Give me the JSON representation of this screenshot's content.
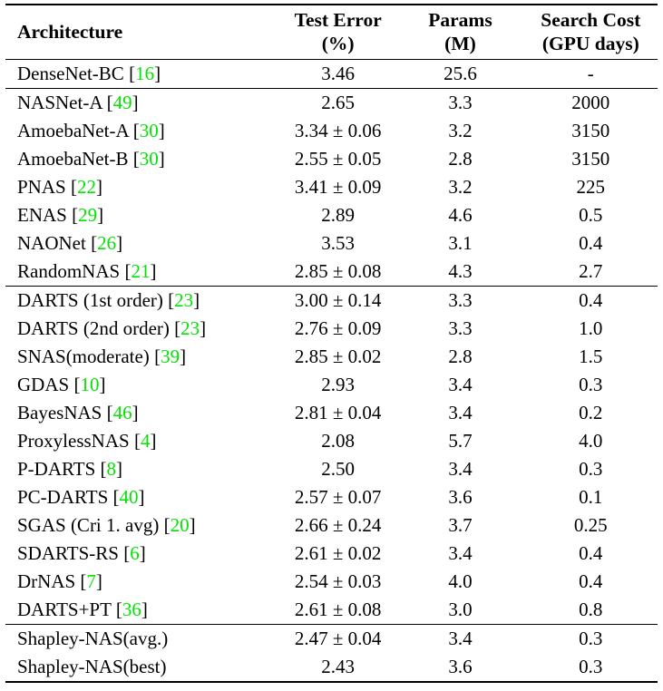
{
  "colors": {
    "citation_green": "#00e400",
    "text": "#000000",
    "background": "#ffffff",
    "rule": "#000000"
  },
  "table": {
    "headers": [
      {
        "line1": "Architecture",
        "line2": ""
      },
      {
        "line1": "Test Error",
        "line2": "(%)"
      },
      {
        "line1": "Params",
        "line2": "(M)"
      },
      {
        "line1": "Search Cost",
        "line2": "(GPU days)"
      }
    ],
    "citation_brackets": {
      "open": "[",
      "close": "]"
    },
    "sections": [
      {
        "rows": [
          {
            "name": "DenseNet-BC",
            "cite": "16",
            "test_error": "3.46",
            "params": "25.6",
            "search_cost": "-"
          }
        ]
      },
      {
        "rows": [
          {
            "name": "NASNet-A",
            "cite": "49",
            "test_error": "2.65",
            "params": "3.3",
            "search_cost": "2000"
          },
          {
            "name": "AmoebaNet-A",
            "cite": "30",
            "test_error": "3.34 ± 0.06",
            "params": "3.2",
            "search_cost": "3150"
          },
          {
            "name": "AmoebaNet-B",
            "cite": "30",
            "test_error": "2.55 ± 0.05",
            "params": "2.8",
            "search_cost": "3150"
          },
          {
            "name": "PNAS",
            "cite": "22",
            "test_error": "3.41 ± 0.09",
            "params": "3.2",
            "search_cost": "225"
          },
          {
            "name": "ENAS",
            "cite": "29",
            "test_error": "2.89",
            "params": "4.6",
            "search_cost": "0.5"
          },
          {
            "name": "NAONet",
            "cite": "26",
            "test_error": "3.53",
            "params": "3.1",
            "search_cost": "0.4"
          },
          {
            "name": "RandomNAS",
            "cite": "21",
            "test_error": "2.85 ± 0.08",
            "params": "4.3",
            "search_cost": "2.7"
          }
        ]
      },
      {
        "rows": [
          {
            "name": "DARTS (1st order)",
            "cite": "23",
            "test_error": "3.00 ± 0.14",
            "params": "3.3",
            "search_cost": "0.4"
          },
          {
            "name": "DARTS (2nd order)",
            "cite": "23",
            "test_error": "2.76 ± 0.09",
            "params": "3.3",
            "search_cost": "1.0"
          },
          {
            "name": "SNAS(moderate)",
            "cite": "39",
            "test_error": "2.85 ± 0.02",
            "params": "2.8",
            "search_cost": "1.5"
          },
          {
            "name": "GDAS",
            "cite": "10",
            "test_error": "2.93",
            "params": "3.4",
            "search_cost": "0.3"
          },
          {
            "name": "BayesNAS",
            "cite": "46",
            "test_error": "2.81 ± 0.04",
            "params": "3.4",
            "search_cost": "0.2"
          },
          {
            "name": "ProxylessNAS",
            "cite": "4",
            "test_error": "2.08",
            "params": "5.7",
            "search_cost": "4.0"
          },
          {
            "name": "P-DARTS",
            "cite": "8",
            "test_error": "2.50",
            "params": "3.4",
            "search_cost": "0.3"
          },
          {
            "name": "PC-DARTS",
            "cite": "40",
            "test_error": "2.57 ± 0.07",
            "params": "3.6",
            "search_cost": "0.1"
          },
          {
            "name": "SGAS (Cri 1. avg)",
            "cite": "20",
            "test_error": "2.66 ± 0.24",
            "params": "3.7",
            "search_cost": "0.25"
          },
          {
            "name": "SDARTS-RS",
            "cite": "6",
            "test_error": "2.61 ± 0.02",
            "params": "3.4",
            "search_cost": "0.4"
          },
          {
            "name": "DrNAS",
            "cite": "7",
            "test_error": "2.54 ± 0.03",
            "params": "4.0",
            "search_cost": "0.4"
          },
          {
            "name": "DARTS+PT",
            "cite": "36",
            "test_error": "2.61 ± 0.08",
            "params": "3.0",
            "search_cost": "0.8"
          }
        ]
      },
      {
        "rows": [
          {
            "name": "Shapley-NAS(avg.)",
            "cite": "",
            "test_error": "2.47 ± 0.04",
            "params": "3.4",
            "search_cost": "0.3"
          },
          {
            "name": "Shapley-NAS(best)",
            "cite": "",
            "test_error": "2.43",
            "params": "3.6",
            "search_cost": "0.3"
          }
        ]
      }
    ]
  }
}
